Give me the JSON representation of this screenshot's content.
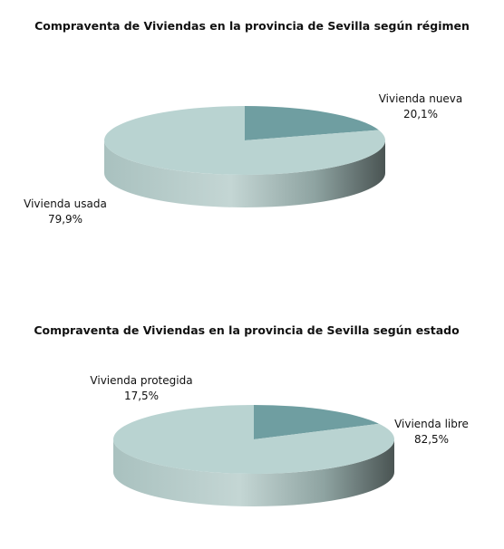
{
  "colors": {
    "light_slice": "#b9d3d1",
    "dark_slice": "#6f9ea1",
    "light_side_mid": "#a7bfbd",
    "light_side_dark": "#4a5655",
    "dark_side": "#4f7476"
  },
  "chart_data": [
    {
      "type": "pie",
      "title": "Compraventa de Viviendas en la provincia de Sevilla según régimen",
      "slices": [
        {
          "label": "Vivienda nueva",
          "value": 20.1,
          "value_label": "20,1%",
          "color": "#6f9ea1"
        },
        {
          "label": "Vivienda usada",
          "value": 79.9,
          "value_label": "79,9%",
          "color": "#b9d3d1"
        }
      ]
    },
    {
      "type": "pie",
      "title": "Compraventa de Viviendas en la provincia de Sevilla según estado",
      "slices": [
        {
          "label": "Vivienda protegida",
          "value": 17.5,
          "value_label": "17,5%",
          "color": "#6f9ea1"
        },
        {
          "label": "Vivienda libre",
          "value": 82.5,
          "value_label": "82,5%",
          "color": "#b9d3d1"
        }
      ]
    }
  ]
}
